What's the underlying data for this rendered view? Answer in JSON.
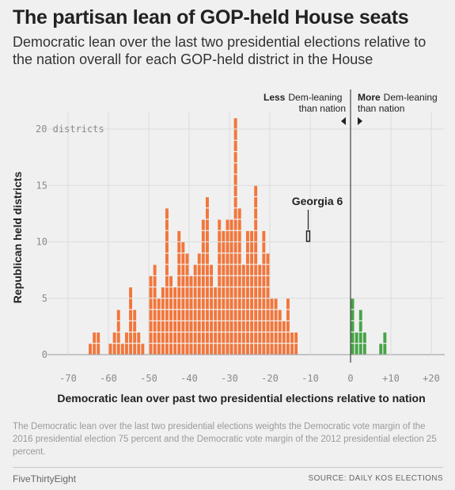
{
  "header": {
    "title": "The partisan lean of GOP-held House seats",
    "subtitle": "Democratic lean over the last two presidential elections relative to the nation overall for each GOP-held district in the House"
  },
  "annotations": {
    "less_bold": "Less",
    "less_rest_1": "Dem-leaning",
    "less_rest_2": "than nation",
    "more_bold": "More",
    "more_rest_1": "Dem-leaning",
    "more_rest_2": "than nation",
    "highlight_label": "Georgia 6"
  },
  "colors": {
    "republican": "#f2763b",
    "democratic": "#47a447",
    "grid": "#dcdcdc",
    "highlight_outline": "#222222"
  },
  "chart_data": {
    "type": "bar",
    "ylabel": "Republican held districts",
    "xlabel": "Democratic lean over past two presidential elections relative to nation",
    "y_first_tick_label": "20 districts",
    "xlim": [
      -72,
      22
    ],
    "ylim": [
      0,
      21
    ],
    "bin_width": 1,
    "x_ticks": [
      -70,
      -60,
      -50,
      -40,
      -30,
      -20,
      -10,
      0,
      10,
      20
    ],
    "x_tick_labels": [
      "-70",
      "-60",
      "-50",
      "-40",
      "-30",
      "-20",
      "-10",
      "0",
      "+10",
      "+20"
    ],
    "y_ticks": [
      0,
      5,
      10,
      15,
      20
    ],
    "y_tick_labels": [
      "0",
      "5",
      "10",
      "15",
      "20 districts"
    ],
    "reference_line_x": 0,
    "series": [
      {
        "key": "republican-lean",
        "bins": [
          [
            -65,
            1
          ],
          [
            -64,
            2
          ],
          [
            -63,
            2
          ],
          [
            -60,
            1
          ],
          [
            -59,
            2
          ],
          [
            -58,
            4
          ],
          [
            -57,
            1
          ],
          [
            -56,
            2
          ],
          [
            -55,
            6
          ],
          [
            -54,
            4
          ],
          [
            -53,
            2
          ],
          [
            -52,
            1
          ],
          [
            -50,
            7
          ],
          [
            -49,
            8
          ],
          [
            -48,
            5
          ],
          [
            -47,
            6
          ],
          [
            -46,
            13
          ],
          [
            -45,
            7
          ],
          [
            -44,
            6
          ],
          [
            -43,
            11
          ],
          [
            -42,
            10
          ],
          [
            -41,
            9
          ],
          [
            -40,
            7
          ],
          [
            -39,
            8
          ],
          [
            -38,
            9
          ],
          [
            -37,
            12
          ],
          [
            -36,
            14
          ],
          [
            -35,
            8
          ],
          [
            -34,
            6
          ],
          [
            -33,
            12
          ],
          [
            -32,
            11
          ],
          [
            -31,
            12
          ],
          [
            -30,
            12
          ],
          [
            -29,
            21
          ],
          [
            -28,
            13
          ],
          [
            -27,
            8
          ],
          [
            -26,
            11
          ],
          [
            -25,
            11
          ],
          [
            -24,
            15
          ],
          [
            -23,
            8
          ],
          [
            -22,
            11
          ],
          [
            -21,
            9
          ],
          [
            -20,
            5
          ],
          [
            -19,
            5
          ],
          [
            -18,
            4
          ],
          [
            -17,
            3
          ],
          [
            -16,
            5
          ],
          [
            -15,
            2
          ],
          [
            -14,
            2
          ]
        ]
      },
      {
        "key": "democratic-lean",
        "bins": [
          [
            1,
            5
          ],
          [
            2,
            2
          ],
          [
            3,
            4
          ],
          [
            4,
            2
          ],
          [
            8,
            1
          ],
          [
            9,
            2
          ]
        ]
      }
    ],
    "highlight": {
      "label": "Georgia 6",
      "x": -10,
      "y": 11
    }
  },
  "footer": {
    "note": "The Democratic lean over the last two presidential elections weights the Democratic vote margin of the 2016 presidential election 75 percent and the Democratic vote margin of the 2012 presidential election 25 percent.",
    "brand": "FiveThirtyEight",
    "source": "SOURCE: DAILY KOS ELECTIONS"
  }
}
